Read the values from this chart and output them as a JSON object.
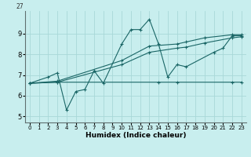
{
  "xlabel": "Humidex (Indice chaleur)",
  "xlim": [
    -0.5,
    23.5
  ],
  "ylim": [
    4.7,
    10.1
  ],
  "yticks": [
    5,
    6,
    7,
    8,
    9
  ],
  "xticks": [
    0,
    1,
    2,
    3,
    4,
    5,
    6,
    7,
    8,
    9,
    10,
    11,
    12,
    13,
    14,
    15,
    16,
    17,
    18,
    19,
    20,
    21,
    22,
    23
  ],
  "bg_color": "#c8eeee",
  "line_color": "#1a6666",
  "grid_color": "#a8d8d8",
  "top_label": "27",
  "lines": [
    {
      "x": [
        0,
        2,
        3,
        4,
        5,
        6,
        7,
        8,
        10,
        11,
        12,
        13,
        14,
        15,
        16,
        17,
        20,
        21,
        22,
        23
      ],
      "y": [
        6.6,
        6.9,
        7.1,
        5.3,
        6.2,
        6.3,
        7.2,
        6.6,
        8.5,
        9.2,
        9.2,
        9.7,
        8.5,
        6.9,
        7.5,
        7.4,
        8.1,
        8.3,
        8.9,
        8.9
      ]
    },
    {
      "x": [
        0,
        3,
        10,
        13,
        16,
        17,
        19,
        22,
        23
      ],
      "y": [
        6.6,
        6.7,
        7.7,
        8.4,
        8.5,
        8.6,
        8.8,
        8.95,
        8.95
      ]
    },
    {
      "x": [
        0,
        3,
        10,
        13,
        16,
        17,
        19,
        22,
        23
      ],
      "y": [
        6.6,
        6.65,
        7.5,
        8.1,
        8.3,
        8.35,
        8.55,
        8.8,
        8.85
      ]
    },
    {
      "x": [
        0,
        3,
        14,
        16,
        22,
        23
      ],
      "y": [
        6.6,
        6.65,
        6.65,
        6.65,
        6.65,
        6.65
      ]
    }
  ]
}
